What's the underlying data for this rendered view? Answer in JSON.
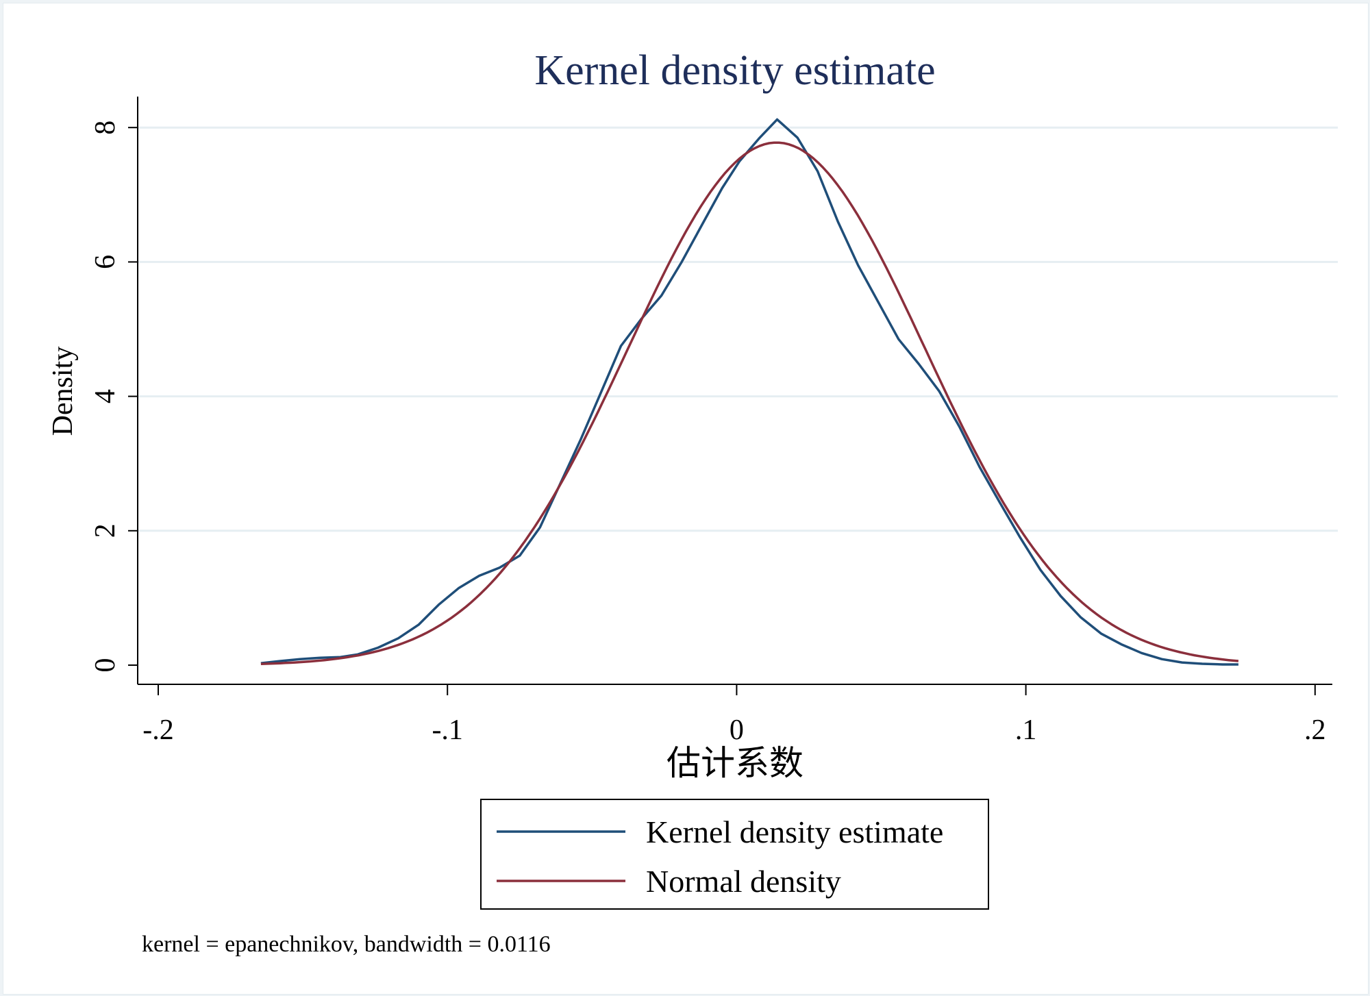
{
  "chart_data": {
    "type": "line",
    "title": "Kernel density estimate",
    "xlabel": "估计系数",
    "ylabel": "Density",
    "note": "kernel = epanechnikov, bandwidth = 0.0116",
    "xlim": [
      -0.21,
      0.21
    ],
    "ylim": [
      -0.6,
      8.4
    ],
    "xticks": [
      -0.2,
      -0.1,
      0,
      0.1,
      0.2
    ],
    "xtick_labels": [
      "-.2",
      "-.1",
      "0",
      ".1",
      ".2"
    ],
    "yticks": [
      0,
      2,
      4,
      6,
      8
    ],
    "ytick_labels": [
      "0",
      "2",
      "4",
      "6",
      "8"
    ],
    "grid": true,
    "legend_position": "bottom",
    "colors": {
      "kernel": "#1f4e79",
      "normal": "#8b2f3c",
      "grid": "#e6eef2",
      "title": "#1e2e5a"
    },
    "series": [
      {
        "name": "Kernel density estimate",
        "x": [
          -0.1645,
          -0.158,
          -0.151,
          -0.144,
          -0.137,
          -0.131,
          -0.124,
          -0.117,
          -0.11,
          -0.103,
          -0.096,
          -0.089,
          -0.082,
          -0.075,
          -0.068,
          -0.061,
          -0.054,
          -0.047,
          -0.04,
          -0.033,
          -0.026,
          -0.019,
          -0.012,
          -0.005,
          0.001,
          0.008,
          0.014,
          0.021,
          0.028,
          0.035,
          0.042,
          0.049,
          0.056,
          0.063,
          0.07,
          0.077,
          0.084,
          0.091,
          0.098,
          0.105,
          0.112,
          0.119,
          0.126,
          0.133,
          0.14,
          0.147,
          0.154,
          0.161,
          0.168,
          0.1735
        ],
        "y": [
          0.03,
          0.06,
          0.09,
          0.11,
          0.12,
          0.16,
          0.26,
          0.4,
          0.6,
          0.9,
          1.15,
          1.33,
          1.45,
          1.63,
          2.05,
          2.7,
          3.35,
          4.05,
          4.75,
          5.15,
          5.5,
          6.0,
          6.55,
          7.1,
          7.5,
          7.85,
          8.12,
          7.85,
          7.35,
          6.6,
          5.95,
          5.4,
          4.85,
          4.48,
          4.08,
          3.55,
          2.95,
          2.42,
          1.9,
          1.42,
          1.03,
          0.71,
          0.47,
          0.31,
          0.18,
          0.09,
          0.04,
          0.02,
          0.01,
          0.01
        ]
      },
      {
        "name": "Normal density",
        "mean": 0.0138,
        "sd": 0.0513,
        "x_range": [
          -0.1645,
          0.1735
        ]
      }
    ]
  }
}
